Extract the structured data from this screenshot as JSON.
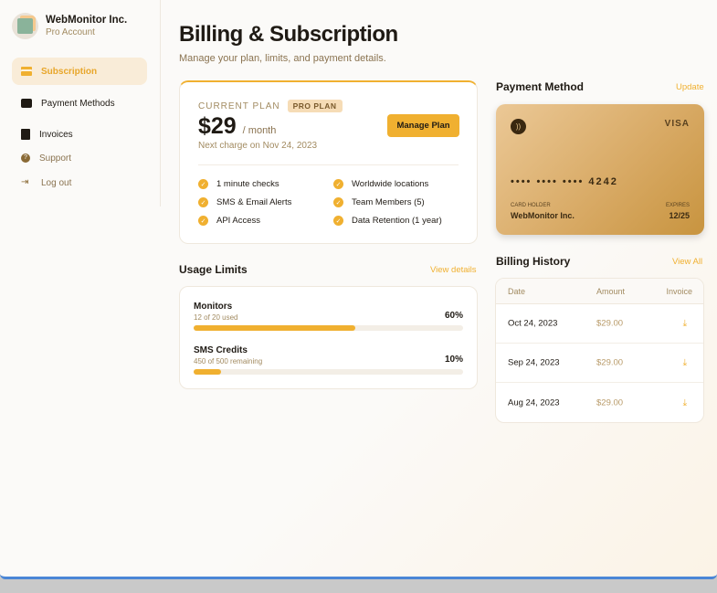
{
  "brand": {
    "name": "WebMonitor Inc.",
    "account": "Pro Account"
  },
  "sidebar": {
    "items": [
      {
        "label": "Subscription",
        "icon": "credit-card-icon",
        "active": true
      },
      {
        "label": "Payment Methods",
        "icon": "wallet-icon"
      },
      {
        "label": "Invoices",
        "icon": "receipt-icon"
      },
      {
        "label": "Support",
        "icon": "help-circle-icon"
      },
      {
        "label": "Log out",
        "icon": "logout-icon"
      }
    ]
  },
  "header": {
    "title": "Billing & Subscription",
    "subtitle": "Manage your plan, limits, and payment details."
  },
  "plan": {
    "label": "CURRENT PLAN",
    "badge": "PRO PLAN",
    "price": "$29",
    "period": "/ month",
    "next_charge": "Next charge on Nov 24, 2023",
    "button": "Manage Plan",
    "features": [
      "1 minute checks",
      "SMS & Email Alerts",
      "API Access",
      "Worldwide locations",
      "Team Members (5)",
      "Data Retention (1 year)"
    ]
  },
  "usage": {
    "title": "Usage Limits",
    "link": "View details",
    "items": [
      {
        "label": "Monitors",
        "sub": "12 of 20 used",
        "percent_text": "60%",
        "percent": 60
      },
      {
        "label": "SMS Credits",
        "sub": "450 of 500 remaining",
        "percent_text": "10%",
        "percent": 10
      }
    ]
  },
  "payment": {
    "title": "Payment Method",
    "link": "Update",
    "brand": "VISA",
    "number": "•••• •••• •••• 4242",
    "holder_label": "CARD HOLDER",
    "holder": "WebMonitor Inc.",
    "expires_label": "EXPIRES",
    "expires": "12/25"
  },
  "history": {
    "title": "Billing History",
    "link": "View All",
    "columns": [
      "Date",
      "Amount",
      "Invoice"
    ],
    "rows": [
      {
        "date": "Oct 24, 2023",
        "amount": "$29.00"
      },
      {
        "date": "Sep 24, 2023",
        "amount": "$29.00"
      },
      {
        "date": "Aug 24, 2023",
        "amount": "$29.00"
      }
    ]
  },
  "colors": {
    "accent": "#f0b030",
    "muted": "#a28b61",
    "frame": "#4a86d6"
  }
}
